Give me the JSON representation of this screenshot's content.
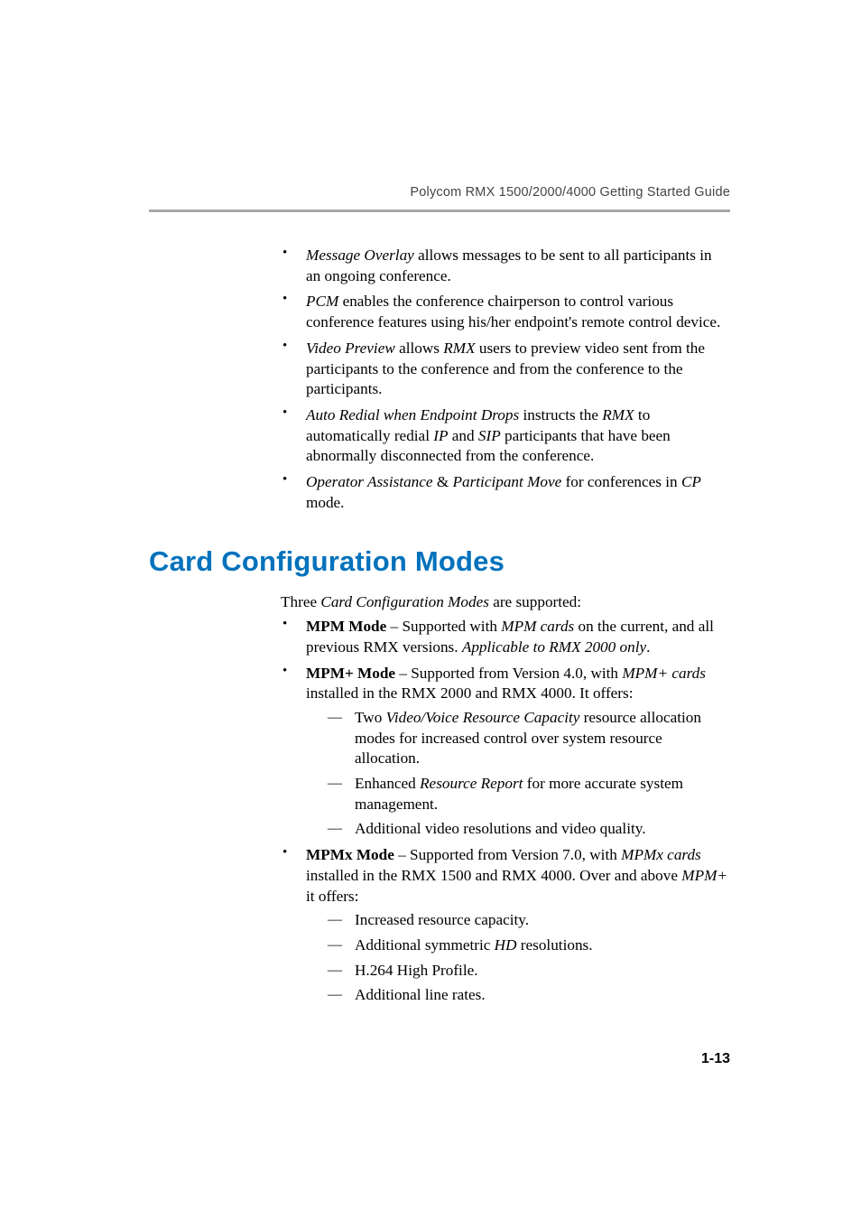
{
  "header": {
    "text": "Polycom RMX 1500/2000/4000 Getting Started Guide",
    "rule_color": "#a8a8a8"
  },
  "top_bullets": [
    {
      "parts": [
        {
          "text": "Message Overlay",
          "style": "italic"
        },
        {
          "text": " allows messages to be sent to all participants in an ongoing conference."
        }
      ]
    },
    {
      "parts": [
        {
          "text": "PCM",
          "style": "italic"
        },
        {
          "text": " enables the conference chairperson to control various conference features using his/her endpoint's remote control device."
        }
      ]
    },
    {
      "parts": [
        {
          "text": "Video Preview",
          "style": "italic"
        },
        {
          "text": " allows "
        },
        {
          "text": "RMX",
          "style": "italic"
        },
        {
          "text": " users to preview video sent from the participants to the conference and from the conference to the participants."
        }
      ]
    },
    {
      "parts": [
        {
          "text": "Auto Redial when Endpoint Drops",
          "style": "italic"
        },
        {
          "text": " instructs the "
        },
        {
          "text": "RMX",
          "style": "italic"
        },
        {
          "text": " to automatically redial "
        },
        {
          "text": "IP",
          "style": "italic"
        },
        {
          "text": " and "
        },
        {
          "text": "SIP",
          "style": "italic"
        },
        {
          "text": " participants that have been abnormally disconnected from the conference."
        }
      ]
    },
    {
      "parts": [
        {
          "text": "Operator Assistance",
          "style": "italic"
        },
        {
          "text": " & "
        },
        {
          "text": "Participant Move",
          "style": "italic"
        },
        {
          "text": " for conferences in "
        },
        {
          "text": "CP",
          "style": "italic"
        },
        {
          "text": " mode."
        }
      ]
    }
  ],
  "section": {
    "title": "Card Configuration Modes",
    "title_color": "#0072bc",
    "intro_parts": [
      {
        "text": "Three "
      },
      {
        "text": "Card Configuration Modes",
        "style": "italic"
      },
      {
        "text": " are supported:"
      }
    ],
    "bullets": [
      {
        "parts": [
          {
            "text": "MPM Mode",
            "style": "bold"
          },
          {
            "text": " – Supported with "
          },
          {
            "text": "MPM cards",
            "style": "italic"
          },
          {
            "text": " on the current, and all previous RMX versions. "
          },
          {
            "text": "Applicable to RMX 2000 only",
            "style": "italic"
          },
          {
            "text": "."
          }
        ]
      },
      {
        "parts": [
          {
            "text": "MPM+ Mode",
            "style": "bold"
          },
          {
            "text": " – Supported from Version 4.0, with "
          },
          {
            "text": "MPM+ cards",
            "style": "italic"
          },
          {
            "text": " installed in the RMX 2000 and RMX 4000. It offers:"
          }
        ],
        "sub": [
          {
            "parts": [
              {
                "text": "Two "
              },
              {
                "text": "Video/Voice Resource Capacity",
                "style": "italic"
              },
              {
                "text": " resource allocation modes for increased control over system resource allocation."
              }
            ]
          },
          {
            "parts": [
              {
                "text": "Enhanced "
              },
              {
                "text": "Resource Report",
                "style": "italic"
              },
              {
                "text": " for more accurate system management."
              }
            ]
          },
          {
            "parts": [
              {
                "text": "Additional video resolutions and video quality."
              }
            ]
          }
        ]
      },
      {
        "parts": [
          {
            "text": "MPMx Mode",
            "style": "bold"
          },
          {
            "text": " – Supported from Version 7.0, with "
          },
          {
            "text": "MPMx cards",
            "style": "italic"
          },
          {
            "text": " installed in the RMX 1500 and RMX 4000. Over and above "
          },
          {
            "text": "MPM+",
            "style": "italic"
          },
          {
            "text": " it offers:"
          }
        ],
        "sub": [
          {
            "parts": [
              {
                "text": "Increased resource capacity."
              }
            ]
          },
          {
            "parts": [
              {
                "text": "Additional symmetric "
              },
              {
                "text": "HD",
                "style": "italic"
              },
              {
                "text": " resolutions."
              }
            ]
          },
          {
            "parts": [
              {
                "text": "H.264 High Profile."
              }
            ]
          },
          {
            "parts": [
              {
                "text": "Additional line rates."
              }
            ]
          }
        ]
      }
    ]
  },
  "page_number": "1-13",
  "typography": {
    "body_font": "Palatino Linotype",
    "heading_font": "Futura",
    "body_size_pt": 13,
    "heading_size_pt": 23,
    "header_size_pt": 11
  },
  "colors": {
    "text": "#000000",
    "heading": "#0072bc",
    "header_text": "#444444",
    "rule": "#a8a8a8",
    "background": "#ffffff"
  }
}
